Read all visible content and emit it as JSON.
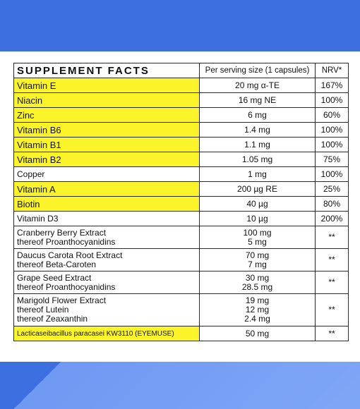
{
  "table": {
    "header": {
      "name": "SUPPLEMENT FACTS",
      "amount": "Per serving size (1 capsules)",
      "nrv": "NRV*"
    },
    "rows": [
      {
        "name": "Vitamin E",
        "amount": "20 mg α-TE",
        "nrv": "167%",
        "highlight": "#fbf42a"
      },
      {
        "name": "Niacin",
        "amount": "16 mg NE",
        "nrv": "100%",
        "highlight": "#fbf42a"
      },
      {
        "name": "Zinc",
        "amount": "6 mg",
        "nrv": "60%",
        "highlight": "#fbf42a"
      },
      {
        "name": "Vitamin B6",
        "amount": "1.4 mg",
        "nrv": "100%",
        "highlight": "#fbf42a"
      },
      {
        "name": "Vitamin B1",
        "amount": "1.1 mg",
        "nrv": "100%",
        "highlight": "#fbf42a"
      },
      {
        "name": "Vitamin B2",
        "amount": "1.05 mg",
        "nrv": "75%",
        "highlight": "#fbf42a"
      },
      {
        "name": "Copper",
        "amount": "1 mg",
        "nrv": "100%"
      },
      {
        "name": "Vitamin A",
        "amount": "200 µg RE",
        "nrv": "25%",
        "highlight": "#fbf42a"
      },
      {
        "name": "Biotin",
        "amount": "40 µg",
        "nrv": "80%",
        "highlight": "#fbf42a"
      },
      {
        "name": "Vitamin D3",
        "amount": "10 µg",
        "nrv": "200%"
      }
    ],
    "extracts": [
      {
        "lines": [
          "Cranberry Berry Extract",
          "thereof Proanthocyanidins"
        ],
        "amounts": [
          "100 mg",
          "5 mg"
        ],
        "nrv": "**"
      },
      {
        "lines": [
          "Daucus Carota Root Extract",
          "thereof Beta-Caroten"
        ],
        "amounts": [
          "70 mg",
          "7 mg"
        ],
        "nrv": "**"
      },
      {
        "lines": [
          "Grape Seed Extract",
          "thereof Proanthocyanidins"
        ],
        "amounts": [
          "30 mg",
          "28.5 mg"
        ],
        "nrv": "**"
      },
      {
        "lines": [
          "Marigold Flower Extract",
          "thereof Lutein",
          "thereof Zeaxanthin"
        ],
        "amounts": [
          "19 mg",
          "12 mg",
          "2.4 mg"
        ],
        "nrv": "**"
      }
    ],
    "probiotic": {
      "name": "Lacticaseibacillus paracasei KW3110 (EYEMUSE)",
      "amount": "50 mg",
      "nrv": "**",
      "highlight": "#fbf42a"
    }
  },
  "colors": {
    "background_dark": "#3d6fe0",
    "background_light": "#7fa6f6",
    "highlight": "#fbf42a",
    "border": "#2a2a2a"
  }
}
